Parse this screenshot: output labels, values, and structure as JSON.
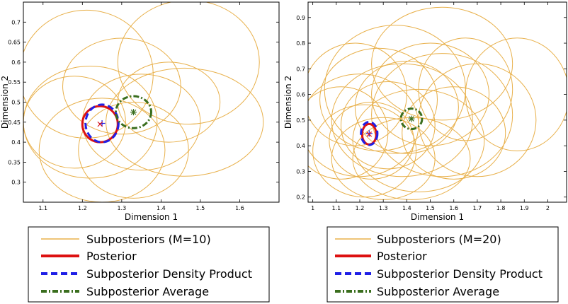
{
  "chart_data": [
    {
      "type": "scatter",
      "title": "",
      "xlabel": "Dimension 1",
      "ylabel": "Dimension 2",
      "xlim": [
        1.05,
        1.7
      ],
      "ylim": [
        0.25,
        0.75
      ],
      "xticks": [
        "1.1",
        "1.2",
        "1.3",
        "1.4",
        "1.5",
        "1.6"
      ],
      "xtick_values": [
        1.1,
        1.2,
        1.3,
        1.4,
        1.5,
        1.6
      ],
      "yticks": [
        "0.3",
        "0.35",
        "0.4",
        "0.45",
        "0.5",
        "0.55",
        "0.6",
        "0.65",
        "0.7"
      ],
      "ytick_values": [
        0.3,
        0.35,
        0.4,
        0.45,
        0.5,
        0.55,
        0.6,
        0.65,
        0.7
      ],
      "grid": false,
      "legend_position": "below",
      "series": [
        {
          "name": "Subposteriors (M=10)",
          "color": "#e8b04a",
          "style": "solid",
          "ellipses": [
            {
              "cx": 1.47,
              "cy": 0.6,
              "rx": 0.18,
              "ry": 0.155
            },
            {
              "cx": 1.21,
              "cy": 0.57,
              "rx": 0.17,
              "ry": 0.16
            },
            {
              "cx": 1.46,
              "cy": 0.45,
              "rx": 0.2,
              "ry": 0.135
            },
            {
              "cx": 1.25,
              "cy": 0.38,
              "rx": 0.16,
              "ry": 0.13
            },
            {
              "cx": 1.35,
              "cy": 0.45,
              "rx": 0.15,
              "ry": 0.12
            },
            {
              "cx": 1.18,
              "cy": 0.45,
              "rx": 0.13,
              "ry": 0.115
            },
            {
              "cx": 1.3,
              "cy": 0.54,
              "rx": 0.15,
              "ry": 0.12
            },
            {
              "cx": 1.22,
              "cy": 0.45,
              "rx": 0.17,
              "ry": 0.14
            },
            {
              "cx": 1.33,
              "cy": 0.38,
              "rx": 0.14,
              "ry": 0.12
            },
            {
              "cx": 1.42,
              "cy": 0.5,
              "rx": 0.13,
              "ry": 0.1
            }
          ]
        },
        {
          "name": "Posterior",
          "color": "#dd1111",
          "style": "solid",
          "ellipses": [
            {
              "cx": 1.245,
              "cy": 0.445,
              "rx": 0.045,
              "ry": 0.045
            }
          ]
        },
        {
          "name": "Subposterior Density Product",
          "color": "#1f1fe6",
          "style": "dashed",
          "ellipses": [
            {
              "cx": 1.25,
              "cy": 0.447,
              "rx": 0.042,
              "ry": 0.047
            }
          ]
        },
        {
          "name": "Subposterior Average",
          "color": "#3a6e1e",
          "style": "dashdot",
          "ellipses": [
            {
              "cx": 1.33,
              "cy": 0.475,
              "rx": 0.045,
              "ry": 0.04
            }
          ]
        }
      ],
      "markers": [
        {
          "x": 1.25,
          "y": 0.447,
          "symbol": "+",
          "color": "#1f1fe6"
        },
        {
          "x": 1.245,
          "y": 0.445,
          "symbol": "x",
          "color": "#dd1111"
        },
        {
          "x": 1.33,
          "y": 0.475,
          "symbol": "*",
          "color": "#3a6e1e"
        }
      ]
    },
    {
      "type": "scatter",
      "title": "",
      "xlabel": "Dimension 1",
      "ylabel": "Dimension 2",
      "xlim": [
        0.98,
        2.08
      ],
      "ylim": [
        0.18,
        0.96
      ],
      "xticks": [
        "1",
        "1.1",
        "1.2",
        "1.3",
        "1.4",
        "1.5",
        "1.6",
        "1.7",
        "1.8",
        "1.9",
        "2"
      ],
      "xtick_values": [
        1.0,
        1.1,
        1.2,
        1.3,
        1.4,
        1.5,
        1.6,
        1.7,
        1.8,
        1.9,
        2.0
      ],
      "yticks": [
        "0.2",
        "0.3",
        "0.4",
        "0.5",
        "0.6",
        "0.7",
        "0.8",
        "0.9"
      ],
      "ytick_values": [
        0.2,
        0.3,
        0.4,
        0.5,
        0.6,
        0.7,
        0.8,
        0.9
      ],
      "grid": false,
      "legend_position": "below",
      "series": [
        {
          "name": "Subposteriors (M=20)",
          "color": "#e8b04a",
          "style": "solid",
          "ellipses": [
            {
              "cx": 1.55,
              "cy": 0.72,
              "rx": 0.3,
              "ry": 0.22
            },
            {
              "cx": 1.87,
              "cy": 0.6,
              "rx": 0.22,
              "ry": 0.22
            },
            {
              "cx": 1.35,
              "cy": 0.62,
              "rx": 0.3,
              "ry": 0.25
            },
            {
              "cx": 1.2,
              "cy": 0.48,
              "rx": 0.25,
              "ry": 0.2
            },
            {
              "cx": 1.45,
              "cy": 0.42,
              "rx": 0.28,
              "ry": 0.2
            },
            {
              "cx": 1.3,
              "cy": 0.35,
              "rx": 0.22,
              "ry": 0.16
            },
            {
              "cx": 1.55,
              "cy": 0.52,
              "rx": 0.3,
              "ry": 0.24
            },
            {
              "cx": 1.18,
              "cy": 0.6,
              "rx": 0.22,
              "ry": 0.2
            },
            {
              "cx": 1.4,
              "cy": 0.55,
              "rx": 0.22,
              "ry": 0.18
            },
            {
              "cx": 1.25,
              "cy": 0.42,
              "rx": 0.18,
              "ry": 0.15
            },
            {
              "cx": 1.6,
              "cy": 0.45,
              "rx": 0.22,
              "ry": 0.18
            },
            {
              "cx": 1.5,
              "cy": 0.6,
              "rx": 0.25,
              "ry": 0.2
            },
            {
              "cx": 1.32,
              "cy": 0.48,
              "rx": 0.2,
              "ry": 0.17
            },
            {
              "cx": 1.12,
              "cy": 0.45,
              "rx": 0.2,
              "ry": 0.18
            },
            {
              "cx": 1.65,
              "cy": 0.62,
              "rx": 0.2,
              "ry": 0.2
            },
            {
              "cx": 1.42,
              "cy": 0.35,
              "rx": 0.25,
              "ry": 0.16
            },
            {
              "cx": 1.28,
              "cy": 0.58,
              "rx": 0.25,
              "ry": 0.2
            },
            {
              "cx": 1.7,
              "cy": 0.5,
              "rx": 0.25,
              "ry": 0.22
            },
            {
              "cx": 1.38,
              "cy": 0.5,
              "rx": 0.3,
              "ry": 0.22
            },
            {
              "cx": 1.22,
              "cy": 0.38,
              "rx": 0.22,
              "ry": 0.18
            }
          ]
        },
        {
          "name": "Posterior",
          "color": "#dd1111",
          "style": "solid",
          "ellipses": [
            {
              "cx": 1.24,
              "cy": 0.445,
              "rx": 0.03,
              "ry": 0.04
            }
          ]
        },
        {
          "name": "Subposterior Density Product",
          "color": "#1f1fe6",
          "style": "dashed",
          "ellipses": [
            {
              "cx": 1.24,
              "cy": 0.448,
              "rx": 0.035,
              "ry": 0.045
            }
          ]
        },
        {
          "name": "Subposterior Average",
          "color": "#3a6e1e",
          "style": "dashdot",
          "ellipses": [
            {
              "cx": 1.42,
              "cy": 0.505,
              "rx": 0.045,
              "ry": 0.04
            }
          ]
        }
      ],
      "markers": [
        {
          "x": 1.24,
          "y": 0.448,
          "symbol": "+",
          "color": "#1f1fe6"
        },
        {
          "x": 1.24,
          "y": 0.445,
          "symbol": "x",
          "color": "#dd1111"
        },
        {
          "x": 1.42,
          "y": 0.505,
          "symbol": "*",
          "color": "#3a6e1e"
        }
      ]
    }
  ]
}
